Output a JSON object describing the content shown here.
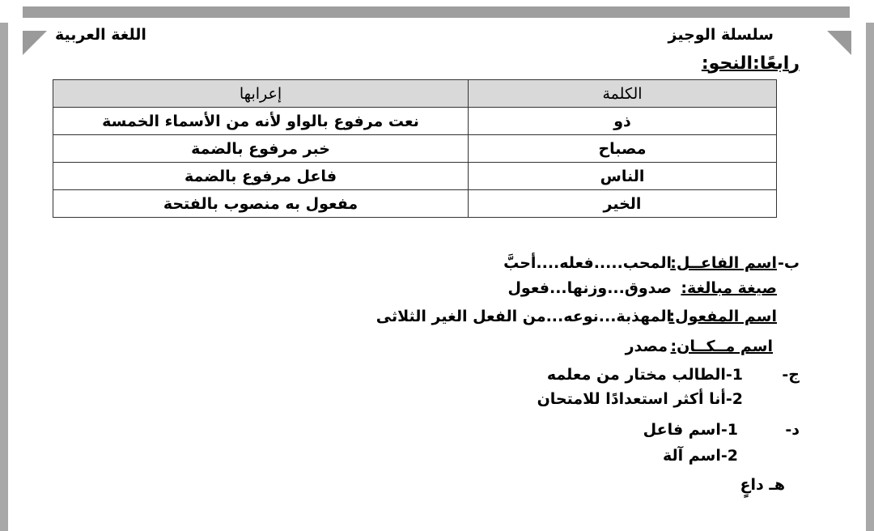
{
  "header": {
    "series": "سلسلة الوجيز",
    "subject": "اللغة العربية",
    "section": "رابعًا:النحو:"
  },
  "table": {
    "headers": [
      "الكلمة",
      "إعرابها"
    ],
    "rows": [
      [
        "ذو",
        "نعت مرفوع بالواو لأنه من الأسماء الخمسة"
      ],
      [
        "مصباح",
        "خبر مرفوع بالضمة"
      ],
      [
        "الناس",
        "فاعل مرفوع بالضمة"
      ],
      [
        "الخير",
        "مفعول به منصوب بالفتحة"
      ]
    ]
  },
  "b": {
    "prefix": "ب-",
    "items": [
      {
        "label": "اسم الفاعــل:",
        "value": "المحب.....فعله....أحبَّ"
      },
      {
        "label": "صيغة مبالغة:",
        "value": "صدوق...وزنها...فعول"
      },
      {
        "label": "اسم المفعول:",
        "value": "المهذبة...نوعه...من الفعل الغير الثلاثى"
      },
      {
        "label": "اسم مــكــان:",
        "value": "مصدر"
      }
    ]
  },
  "j": {
    "prefix": "ج-",
    "items": [
      "1-الطالب مختار من معلمه",
      "2-أنا أكثر استعدادًا للامتحان"
    ]
  },
  "d": {
    "prefix": "د-",
    "items": [
      "1-اسم فاعل",
      "2-اسم آلة"
    ]
  },
  "h": {
    "text": "هـ داعٍ"
  }
}
